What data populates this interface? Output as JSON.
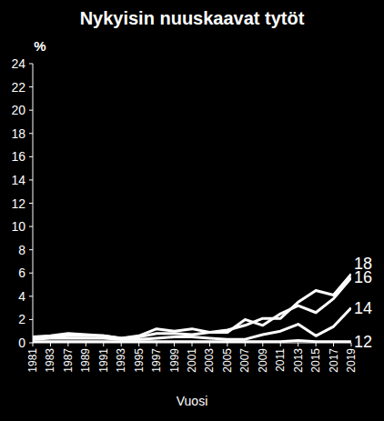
{
  "chart_data": {
    "type": "line",
    "title": "Nykyisin nuuskaavat tytöt",
    "y_label": "%",
    "x_label": "Vuosi",
    "categories": [
      "1981",
      "1983",
      "1987",
      "1989",
      "1991",
      "1993",
      "1995",
      "1997",
      "1999",
      "2001",
      "2003",
      "2005",
      "2007",
      "2009",
      "2011",
      "2013",
      "2015",
      "2017",
      "2019"
    ],
    "series": [
      {
        "name": "12",
        "color": "#ffffff",
        "values": [
          0.1,
          0.1,
          0.1,
          0.1,
          0.1,
          0.1,
          0.1,
          0.1,
          0.1,
          0.1,
          0.1,
          0.1,
          0.1,
          0.1,
          0.1,
          0.2,
          0.1,
          0.1,
          0.1
        ]
      },
      {
        "name": "14",
        "color": "#ffffff",
        "values": [
          0.3,
          0.4,
          0.4,
          0.4,
          0.4,
          0.3,
          0.3,
          0.4,
          0.5,
          0.5,
          0.4,
          0.3,
          0.3,
          0.7,
          1.0,
          1.6,
          0.6,
          1.4,
          3.0
        ]
      },
      {
        "name": "16",
        "color": "#ffffff",
        "values": [
          0.4,
          0.5,
          0.6,
          0.6,
          0.6,
          0.4,
          0.5,
          0.8,
          0.8,
          0.7,
          0.9,
          0.9,
          2.0,
          1.5,
          2.5,
          3.2,
          2.6,
          3.8,
          5.6
        ]
      },
      {
        "name": "18",
        "color": "#ffffff",
        "values": [
          0.5,
          0.6,
          0.8,
          0.7,
          0.6,
          0.4,
          0.6,
          1.2,
          1.0,
          1.2,
          0.9,
          1.1,
          1.5,
          2.1,
          2.1,
          3.5,
          4.5,
          4.1,
          5.9
        ]
      }
    ],
    "ylim": [
      0,
      24
    ],
    "yticks": [
      0,
      2,
      4,
      6,
      8,
      10,
      12,
      14,
      16,
      18,
      20,
      22,
      24
    ],
    "grid": false,
    "legend": "right"
  }
}
